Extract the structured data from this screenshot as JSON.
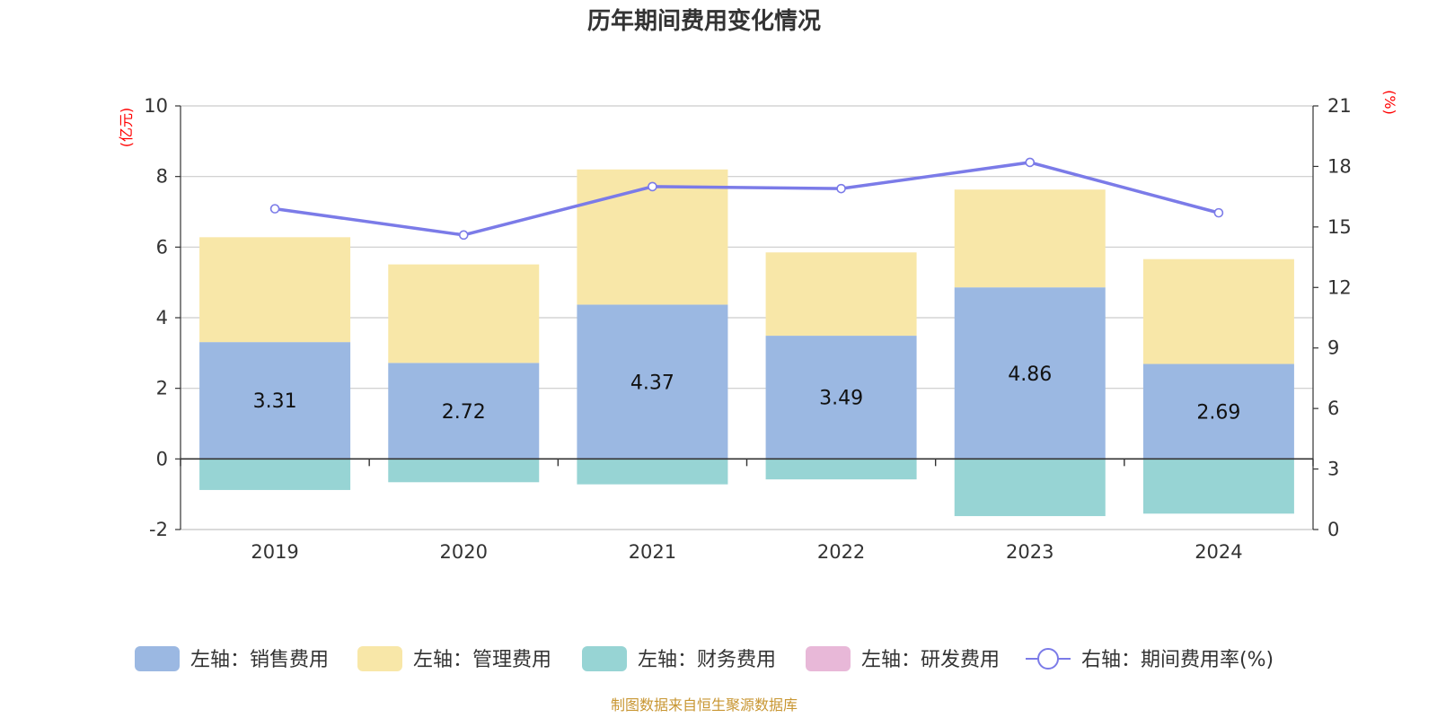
{
  "chart_data": {
    "type": "bar",
    "title": "历年期间费用变化情况",
    "categories": [
      "2019",
      "2020",
      "2021",
      "2022",
      "2023",
      "2024"
    ],
    "y_left": {
      "unit_label": "(亿元)",
      "ticks": [
        -2,
        0,
        2,
        4,
        6,
        8,
        10
      ],
      "ylim": [
        -2,
        10
      ]
    },
    "y_right": {
      "unit_label": "(%)",
      "ticks": [
        0,
        3,
        6,
        9,
        12,
        15,
        18,
        21
      ],
      "ylim": [
        0,
        21
      ]
    },
    "stacked": true,
    "series": [
      {
        "name": "左轴：销售费用",
        "axis": "left",
        "type": "bar",
        "color": "#9bb8e2",
        "values": [
          3.31,
          2.72,
          4.37,
          3.49,
          4.86,
          2.69
        ],
        "show_labels": true
      },
      {
        "name": "左轴：管理费用",
        "axis": "left",
        "type": "bar",
        "color": "#f8e7a8",
        "values": [
          2.97,
          2.79,
          3.83,
          2.36,
          2.77,
          2.97
        ],
        "show_labels": false
      },
      {
        "name": "左轴：财务费用",
        "axis": "left",
        "type": "bar",
        "color": "#97d4d4",
        "values": [
          -0.88,
          -0.66,
          -0.72,
          -0.58,
          -1.62,
          -1.55
        ],
        "show_labels": false
      },
      {
        "name": "左轴：研发费用",
        "axis": "left",
        "type": "bar",
        "color": "#e8b8d8",
        "values": [
          0,
          0,
          0,
          0,
          0,
          0
        ],
        "show_labels": false
      },
      {
        "name": "右轴：期间费用率(%)",
        "axis": "right",
        "type": "line",
        "color": "#7b7be8",
        "values": [
          15.9,
          14.6,
          17.0,
          16.9,
          18.2,
          15.7
        ],
        "show_labels": false
      }
    ],
    "grid": true,
    "legend_position": "bottom"
  },
  "source_note": "制图数据来自恒生聚源数据库"
}
